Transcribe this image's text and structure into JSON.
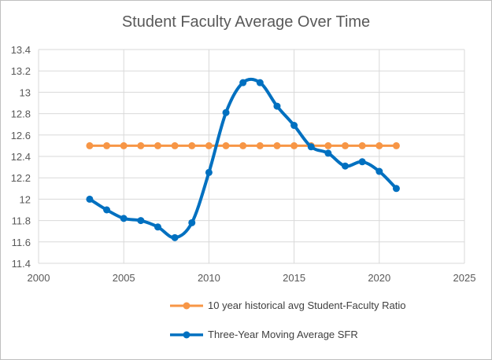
{
  "chart_data": {
    "type": "line",
    "title": "Student Faculty Average Over Time",
    "xlabel": "",
    "ylabel": "",
    "xlim": [
      2000,
      2025
    ],
    "ylim": [
      11.4,
      13.4
    ],
    "xticks": [
      "2000",
      "2005",
      "2010",
      "2015",
      "2020",
      "2025"
    ],
    "yticks": [
      "11.4",
      "11.6",
      "11.8",
      "12",
      "12.2",
      "12.4",
      "12.6",
      "12.8",
      "13",
      "13.2",
      "13.4"
    ],
    "grid": true,
    "legend_position": "bottom",
    "x": [
      2003,
      2004,
      2005,
      2006,
      2007,
      2008,
      2009,
      2010,
      2011,
      2012,
      2013,
      2014,
      2015,
      2016,
      2017,
      2018,
      2019,
      2020,
      2021
    ],
    "series": [
      {
        "name": "10 year historical avg Student-Faculty Ratio",
        "color": "#f79646",
        "values": [
          12.5,
          12.5,
          12.5,
          12.5,
          12.5,
          12.5,
          12.5,
          12.5,
          12.5,
          12.5,
          12.5,
          12.5,
          12.5,
          12.5,
          12.5,
          12.5,
          12.5,
          12.5,
          12.5
        ]
      },
      {
        "name": "Three-Year Moving Average SFR",
        "color": "#0070c0",
        "values": [
          12.0,
          11.9,
          11.82,
          11.8,
          11.74,
          11.64,
          11.78,
          12.25,
          12.81,
          13.09,
          13.09,
          12.87,
          12.69,
          12.49,
          12.43,
          12.31,
          12.35,
          12.26,
          12.1
        ]
      }
    ]
  }
}
